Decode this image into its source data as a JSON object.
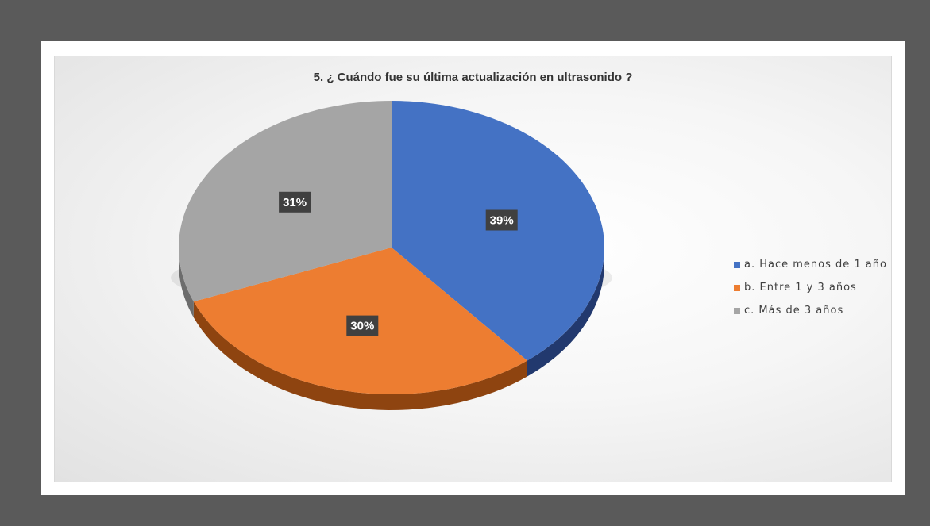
{
  "chart_data": {
    "type": "pie",
    "title": "5. ¿ Cuándo fue su última actualización en ultrasonido ?",
    "categories": [
      "a. Hace menos de 1 año",
      "b. Entre 1 y 3 años",
      "c. Más de 3 años"
    ],
    "values": [
      39,
      30,
      31
    ],
    "labels": [
      "39%",
      "30%",
      "31%"
    ],
    "colors": [
      "#4472c4",
      "#ed7d31",
      "#a5a5a5"
    ],
    "side_colors": [
      "#22396e",
      "#8e4410",
      "#6d6d6d"
    ],
    "legend_position": "right",
    "style": "3d"
  }
}
